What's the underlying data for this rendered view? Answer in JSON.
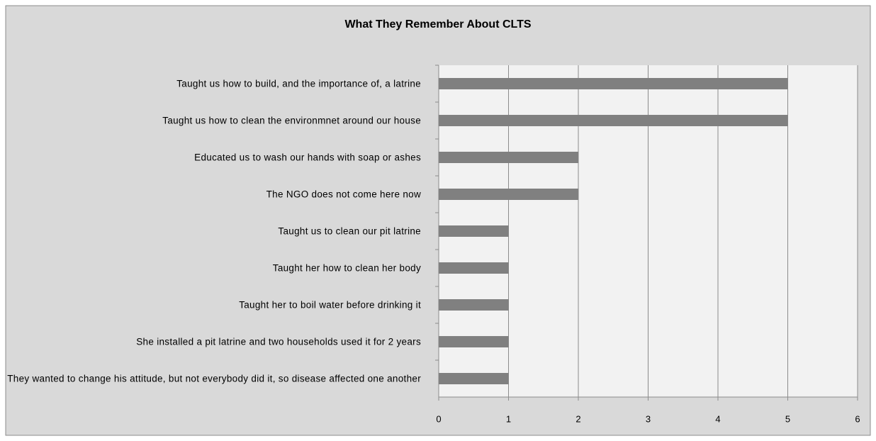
{
  "chart_data": {
    "type": "bar",
    "orientation": "horizontal",
    "title": "What They Remember About CLTS",
    "categories": [
      "Taught us how to build, and the importance of, a latrine",
      "Taught us how to clean the environmnet around our house",
      "Educated us to wash our hands with soap or ashes",
      "The NGO does not come here now",
      "Taught us to clean our pit latrine",
      "Taught her how to clean her body",
      "Taught her to boil water before drinking it",
      "She installed a pit latrine and two households used it for 2 years",
      "They wanted to change his attitude, but not everybody did it, so disease affected one another"
    ],
    "values": [
      5,
      5,
      2,
      2,
      1,
      1,
      1,
      1,
      1
    ],
    "color": "#808080",
    "xlim": [
      0,
      6
    ],
    "xticks": [
      0,
      1,
      2,
      3,
      4,
      5,
      6
    ],
    "grid": true
  }
}
